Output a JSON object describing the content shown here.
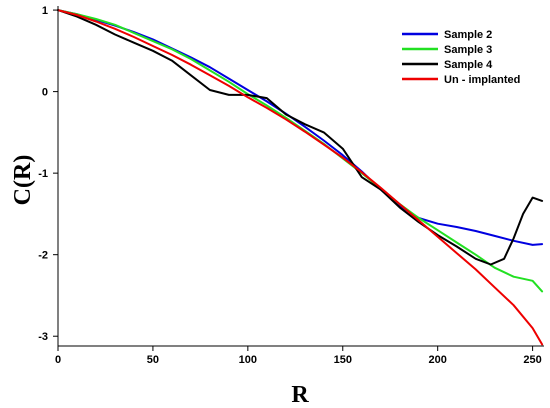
{
  "chart_data": {
    "type": "line",
    "title": "",
    "xlabel": "R",
    "ylabel": "C(R)",
    "xlim": [
      0,
      256
    ],
    "ylim": [
      -3.12,
      1.05
    ],
    "xticks": [
      0,
      50,
      100,
      150,
      200,
      250
    ],
    "yticks": [
      1,
      0,
      -1,
      -2,
      -3
    ],
    "grid": false,
    "legend_position": "top-right",
    "series": [
      {
        "name": "Sample 2",
        "color": "#0000e0",
        "x": [
          0,
          10,
          20,
          30,
          40,
          50,
          60,
          70,
          80,
          90,
          100,
          110,
          120,
          130,
          140,
          150,
          160,
          170,
          180,
          190,
          200,
          210,
          220,
          230,
          240,
          250,
          255
        ],
        "y": [
          1.0,
          0.95,
          0.88,
          0.81,
          0.73,
          0.64,
          0.53,
          0.42,
          0.3,
          0.16,
          0.02,
          -0.12,
          -0.27,
          -0.43,
          -0.6,
          -0.78,
          -0.98,
          -1.2,
          -1.4,
          -1.55,
          -1.62,
          -1.66,
          -1.71,
          -1.77,
          -1.83,
          -1.88,
          -1.87
        ]
      },
      {
        "name": "Sample 3",
        "color": "#22e022",
        "x": [
          0,
          10,
          20,
          30,
          40,
          50,
          60,
          70,
          80,
          90,
          100,
          110,
          120,
          130,
          140,
          150,
          160,
          170,
          180,
          190,
          200,
          210,
          220,
          230,
          240,
          250,
          255
        ],
        "y": [
          1.0,
          0.95,
          0.89,
          0.82,
          0.72,
          0.62,
          0.52,
          0.4,
          0.26,
          0.12,
          -0.03,
          -0.17,
          -0.32,
          -0.48,
          -0.64,
          -0.82,
          -1.0,
          -1.19,
          -1.38,
          -1.55,
          -1.7,
          -1.85,
          -2.0,
          -2.16,
          -2.27,
          -2.32,
          -2.45
        ]
      },
      {
        "name": "Sample 4",
        "color": "#000000",
        "x": [
          0,
          10,
          20,
          30,
          40,
          50,
          60,
          70,
          80,
          90,
          100,
          110,
          120,
          130,
          140,
          150,
          160,
          170,
          180,
          190,
          200,
          210,
          220,
          228,
          235,
          240,
          245,
          250,
          255
        ],
        "y": [
          1.0,
          0.92,
          0.82,
          0.7,
          0.6,
          0.5,
          0.38,
          0.2,
          0.02,
          -0.04,
          -0.04,
          -0.08,
          -0.28,
          -0.4,
          -0.5,
          -0.7,
          -1.05,
          -1.2,
          -1.42,
          -1.6,
          -1.76,
          -1.9,
          -2.05,
          -2.12,
          -2.05,
          -1.8,
          -1.5,
          -1.3,
          -1.34
        ]
      },
      {
        "name": "Un - implanted",
        "color": "#ee0000",
        "x": [
          0,
          10,
          20,
          30,
          40,
          50,
          60,
          70,
          80,
          90,
          100,
          110,
          120,
          130,
          140,
          150,
          160,
          170,
          180,
          190,
          200,
          210,
          220,
          230,
          240,
          250,
          255
        ],
        "y": [
          1.0,
          0.94,
          0.86,
          0.77,
          0.67,
          0.56,
          0.45,
          0.33,
          0.2,
          0.07,
          -0.07,
          -0.2,
          -0.34,
          -0.49,
          -0.65,
          -0.81,
          -0.99,
          -1.18,
          -1.38,
          -1.58,
          -1.78,
          -1.98,
          -2.18,
          -2.4,
          -2.62,
          -2.9,
          -3.1
        ]
      }
    ]
  }
}
